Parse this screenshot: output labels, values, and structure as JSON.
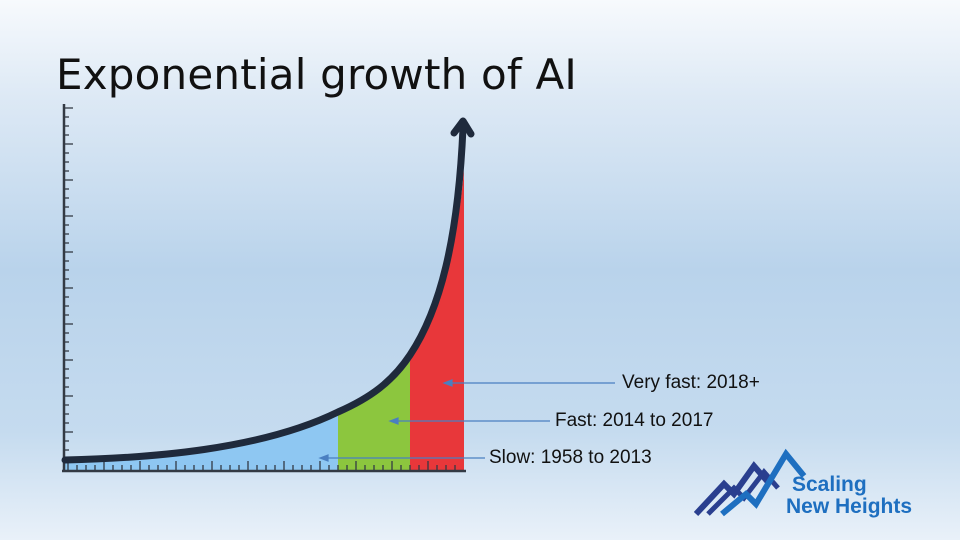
{
  "title": "Exponential growth of AI",
  "phases": [
    {
      "label": "Very fast: 2018+",
      "color": "#e8373a"
    },
    {
      "label": "Fast: 2014 to 2017",
      "color": "#8cc63e"
    },
    {
      "label": "Slow: 1958 to 2013",
      "color": "#8ec7f2"
    }
  ],
  "colors": {
    "curve": "#1f2a3c",
    "axis": "#333a44",
    "annotation_line": "#4a7fc1",
    "logo_primary": "#1e6fc0",
    "logo_secondary": "#2a3f8f"
  },
  "logo": {
    "line1": "Scaling",
    "line2": "New Heights"
  }
}
